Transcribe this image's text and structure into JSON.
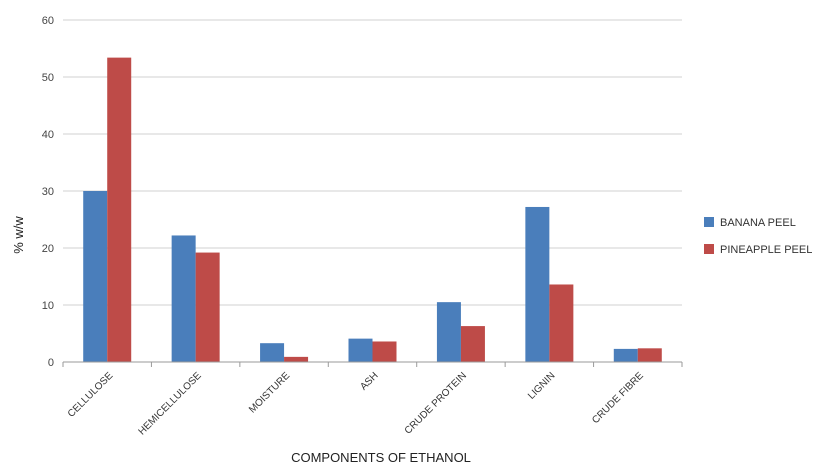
{
  "chart_data": {
    "type": "bar",
    "title": "",
    "xlabel": "COMPONENTS OF ETHANOL",
    "ylabel": "% w/w",
    "ylim": [
      0,
      60
    ],
    "yticks": [
      "0",
      "10",
      "20",
      "30",
      "40",
      "50",
      "60"
    ],
    "grid": true,
    "legend_position": "right",
    "categories": [
      "CELLULOSE",
      "HEMICELLULOSE",
      "MOISTURE",
      "ASH",
      "CRUDE PROTEIN",
      "LIGNIN",
      "CRUDE FIBRE"
    ],
    "series": [
      {
        "name": "BANANA PEEL",
        "color": "#4a7ebb",
        "values": [
          30.0,
          22.2,
          3.3,
          4.1,
          10.5,
          27.2,
          2.3
        ]
      },
      {
        "name": "PINEAPPLE PEEL",
        "color": "#be4b48",
        "values": [
          53.4,
          19.2,
          0.9,
          3.6,
          6.3,
          13.6,
          2.4
        ]
      }
    ]
  }
}
